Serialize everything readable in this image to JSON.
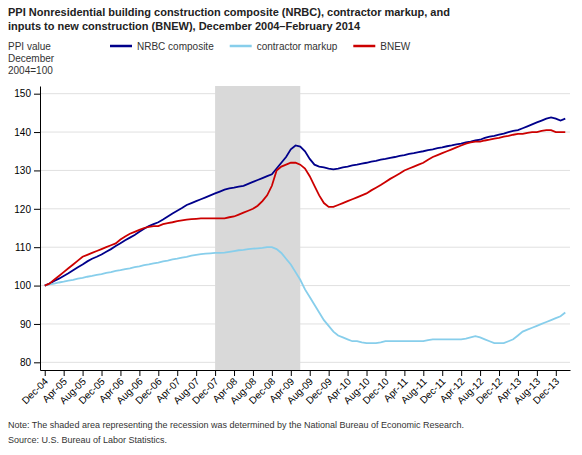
{
  "chart_data": {
    "type": "line",
    "title": "PPI Nonresidential building construction composite (NRBC), contractor markup, and\ninputs to new construction (BNEW), December 2004–February 2014",
    "ylabel": "PPI value\nDecember\n2004=100",
    "annotations": [
      "Note: The shaded area representing the recession was determined by the National Bureau of Economic Research.",
      "Source: U.S. Bureau of Labor Statistics."
    ],
    "shaded_range": [
      36,
      54
    ],
    "ylim": [
      78,
      152
    ],
    "yticks": [
      80,
      90,
      100,
      110,
      120,
      130,
      140,
      150
    ],
    "grid": true,
    "legend": "top",
    "categories": [
      "Dec-04",
      null,
      null,
      null,
      "Apr-05",
      null,
      null,
      null,
      "Aug-05",
      null,
      null,
      null,
      "Dec-05",
      null,
      null,
      null,
      "Apr-06",
      null,
      null,
      null,
      "Aug-06",
      null,
      null,
      null,
      "Dec-06",
      null,
      null,
      null,
      "Apr-07",
      null,
      null,
      null,
      "Aug-07",
      null,
      null,
      null,
      "Dec-07",
      null,
      null,
      null,
      "Apr-08",
      null,
      null,
      null,
      "Aug-08",
      null,
      null,
      null,
      "Dec-08",
      null,
      null,
      null,
      "Apr-09",
      null,
      null,
      null,
      "Aug-09",
      null,
      null,
      null,
      "Dec-09",
      null,
      null,
      null,
      "Apr-10",
      null,
      null,
      null,
      "Aug-10",
      null,
      null,
      null,
      "Dec-10",
      null,
      null,
      null,
      "Apr-11",
      null,
      null,
      null,
      "Aug-11",
      null,
      null,
      null,
      "Dec-11",
      null,
      null,
      null,
      "Apr-12",
      null,
      null,
      null,
      "Aug-12",
      null,
      null,
      null,
      "Dec-12",
      null,
      null,
      null,
      "Apr-13",
      null,
      null,
      null,
      "Aug-13",
      null,
      null,
      null,
      "Dec-13",
      null,
      null
    ],
    "series": [
      {
        "name": "NRBC composite",
        "color": "#00008B",
        "values": [
          100.0,
          100.5,
          101.2,
          101.8,
          102.5,
          103.2,
          104.0,
          104.8,
          105.5,
          106.3,
          107.0,
          107.5,
          108.1,
          108.8,
          109.5,
          110.3,
          111.0,
          111.8,
          112.5,
          113.2,
          114.0,
          114.8,
          115.5,
          116.0,
          116.5,
          117.2,
          118.0,
          118.8,
          119.5,
          120.2,
          121.0,
          121.5,
          122.0,
          122.5,
          123.0,
          123.5,
          124.0,
          124.5,
          125.0,
          125.3,
          125.5,
          125.8,
          126.0,
          126.5,
          127.0,
          127.5,
          128.0,
          128.5,
          129.0,
          130.5,
          132.0,
          133.5,
          135.5,
          136.5,
          136.2,
          135.0,
          133.0,
          131.5,
          131.0,
          130.8,
          130.5,
          130.3,
          130.5,
          130.8,
          131.0,
          131.3,
          131.5,
          131.8,
          132.0,
          132.3,
          132.5,
          132.8,
          133.0,
          133.3,
          133.5,
          133.8,
          134.0,
          134.3,
          134.5,
          134.8,
          135.0,
          135.3,
          135.5,
          135.8,
          136.0,
          136.3,
          136.5,
          136.8,
          137.0,
          137.3,
          137.5,
          137.8,
          138.0,
          138.5,
          138.8,
          139.0,
          139.3,
          139.6,
          140.0,
          140.3,
          140.5,
          141.0,
          141.5,
          142.0,
          142.5,
          143.0,
          143.5,
          143.8,
          143.5,
          143.0,
          143.5
        ]
      },
      {
        "name": "contractor markup",
        "color": "#87CEEB",
        "values": [
          100.0,
          100.3,
          100.5,
          100.8,
          101.0,
          101.3,
          101.5,
          101.8,
          102.0,
          102.3,
          102.5,
          102.8,
          103.0,
          103.3,
          103.5,
          103.8,
          104.0,
          104.3,
          104.5,
          104.8,
          105.0,
          105.3,
          105.5,
          105.8,
          106.0,
          106.3,
          106.5,
          106.8,
          107.0,
          107.3,
          107.5,
          107.8,
          108.0,
          108.2,
          108.3,
          108.4,
          108.5,
          108.5,
          108.6,
          108.8,
          109.0,
          109.2,
          109.3,
          109.5,
          109.6,
          109.7,
          109.8,
          110.0,
          110.0,
          109.5,
          108.5,
          107.0,
          105.5,
          103.5,
          101.5,
          99.0,
          97.0,
          95.0,
          93.0,
          91.0,
          89.5,
          88.0,
          87.0,
          86.5,
          86.0,
          85.5,
          85.5,
          85.2,
          85.0,
          85.0,
          85.0,
          85.2,
          85.5,
          85.5,
          85.5,
          85.5,
          85.5,
          85.5,
          85.5,
          85.5,
          85.5,
          85.8,
          86.0,
          86.0,
          86.0,
          86.0,
          86.0,
          86.0,
          86.0,
          86.2,
          86.5,
          86.8,
          86.5,
          86.0,
          85.5,
          85.0,
          85.0,
          85.0,
          85.5,
          86.0,
          87.0,
          88.0,
          88.5,
          89.0,
          89.5,
          90.0,
          90.5,
          91.0,
          91.5,
          92.0,
          93.0
        ]
      },
      {
        "name": "BNEW",
        "color": "#CC0000",
        "values": [
          100.0,
          100.5,
          101.5,
          102.5,
          103.5,
          104.5,
          105.5,
          106.5,
          107.5,
          108.0,
          108.5,
          109.0,
          109.5,
          110.0,
          110.5,
          111.0,
          112.0,
          112.8,
          113.5,
          114.0,
          114.5,
          115.0,
          115.3,
          115.5,
          115.5,
          116.0,
          116.3,
          116.5,
          116.8,
          117.0,
          117.2,
          117.3,
          117.4,
          117.5,
          117.5,
          117.5,
          117.5,
          117.5,
          117.5,
          117.8,
          118.0,
          118.5,
          119.0,
          119.5,
          120.0,
          120.8,
          122.0,
          123.5,
          126.0,
          130.0,
          131.0,
          131.5,
          132.0,
          132.0,
          131.5,
          130.5,
          128.5,
          126.0,
          123.5,
          121.5,
          120.5,
          120.5,
          121.0,
          121.5,
          122.0,
          122.5,
          123.0,
          123.5,
          124.0,
          124.8,
          125.5,
          126.2,
          127.0,
          127.8,
          128.5,
          129.2,
          130.0,
          130.5,
          131.0,
          131.5,
          132.0,
          132.8,
          133.5,
          134.0,
          134.5,
          135.0,
          135.5,
          136.0,
          136.5,
          137.0,
          137.3,
          137.5,
          137.5,
          137.8,
          138.0,
          138.3,
          138.5,
          138.8,
          139.0,
          139.3,
          139.5,
          139.5,
          139.8,
          140.0,
          140.0,
          140.3,
          140.5,
          140.5,
          140.0,
          140.0,
          140.0
        ]
      }
    ]
  }
}
